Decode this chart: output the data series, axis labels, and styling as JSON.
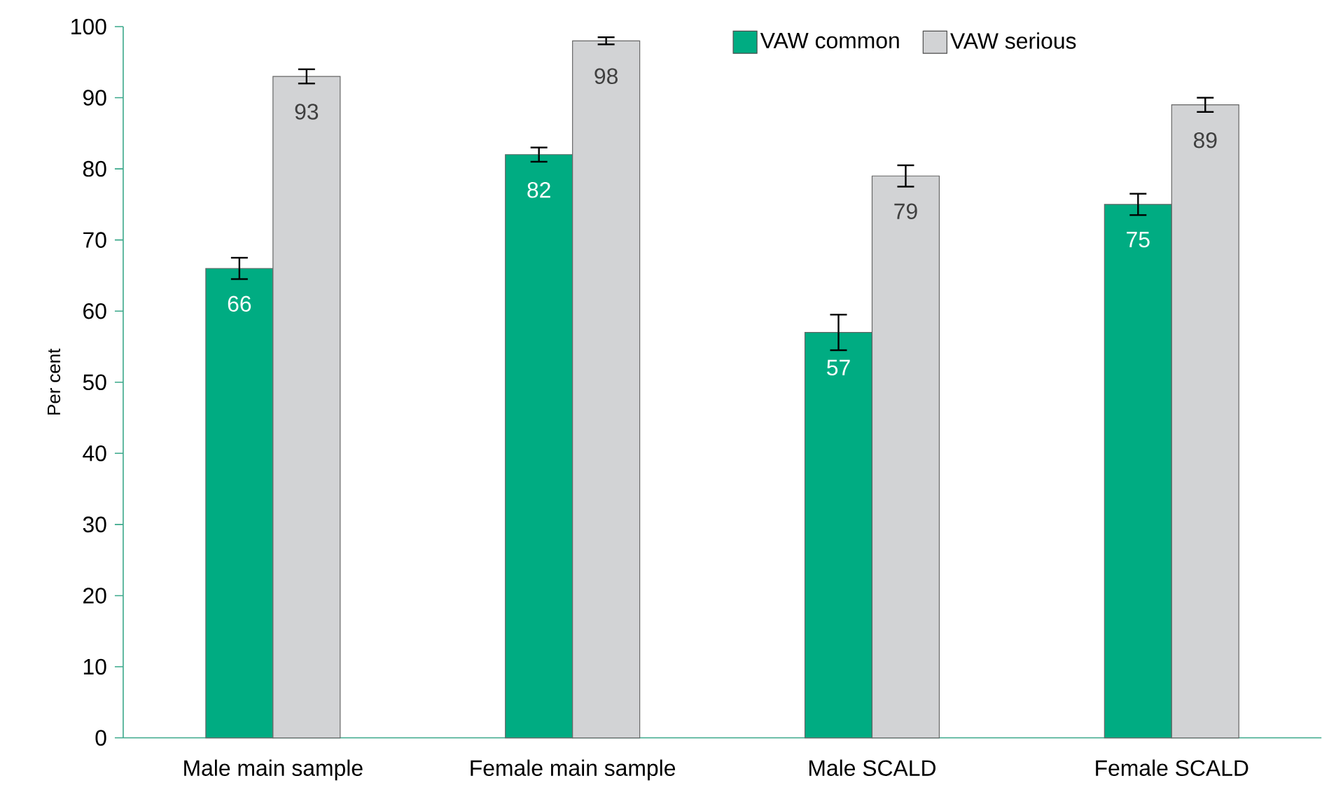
{
  "chart_data": {
    "type": "bar",
    "ylabel": "Per cent",
    "categories": [
      "Male main sample",
      "Female main sample",
      "Male SCALD",
      "Female SCALD"
    ],
    "series": [
      {
        "name": "VAW common",
        "color": "#00ac82",
        "values": [
          66,
          82,
          57,
          75
        ],
        "errors": [
          1.5,
          1,
          2.5,
          1.5
        ]
      },
      {
        "name": "VAW serious",
        "color": "#d2d3d5",
        "values": [
          93,
          98,
          79,
          89
        ],
        "errors": [
          1,
          0.5,
          1.5,
          1
        ]
      }
    ],
    "ylim": [
      0,
      100
    ],
    "yticks": [
      0,
      10,
      20,
      30,
      40,
      50,
      60,
      70,
      80,
      90,
      100
    ],
    "data_labels": true,
    "legend": "top right",
    "grid": false
  }
}
